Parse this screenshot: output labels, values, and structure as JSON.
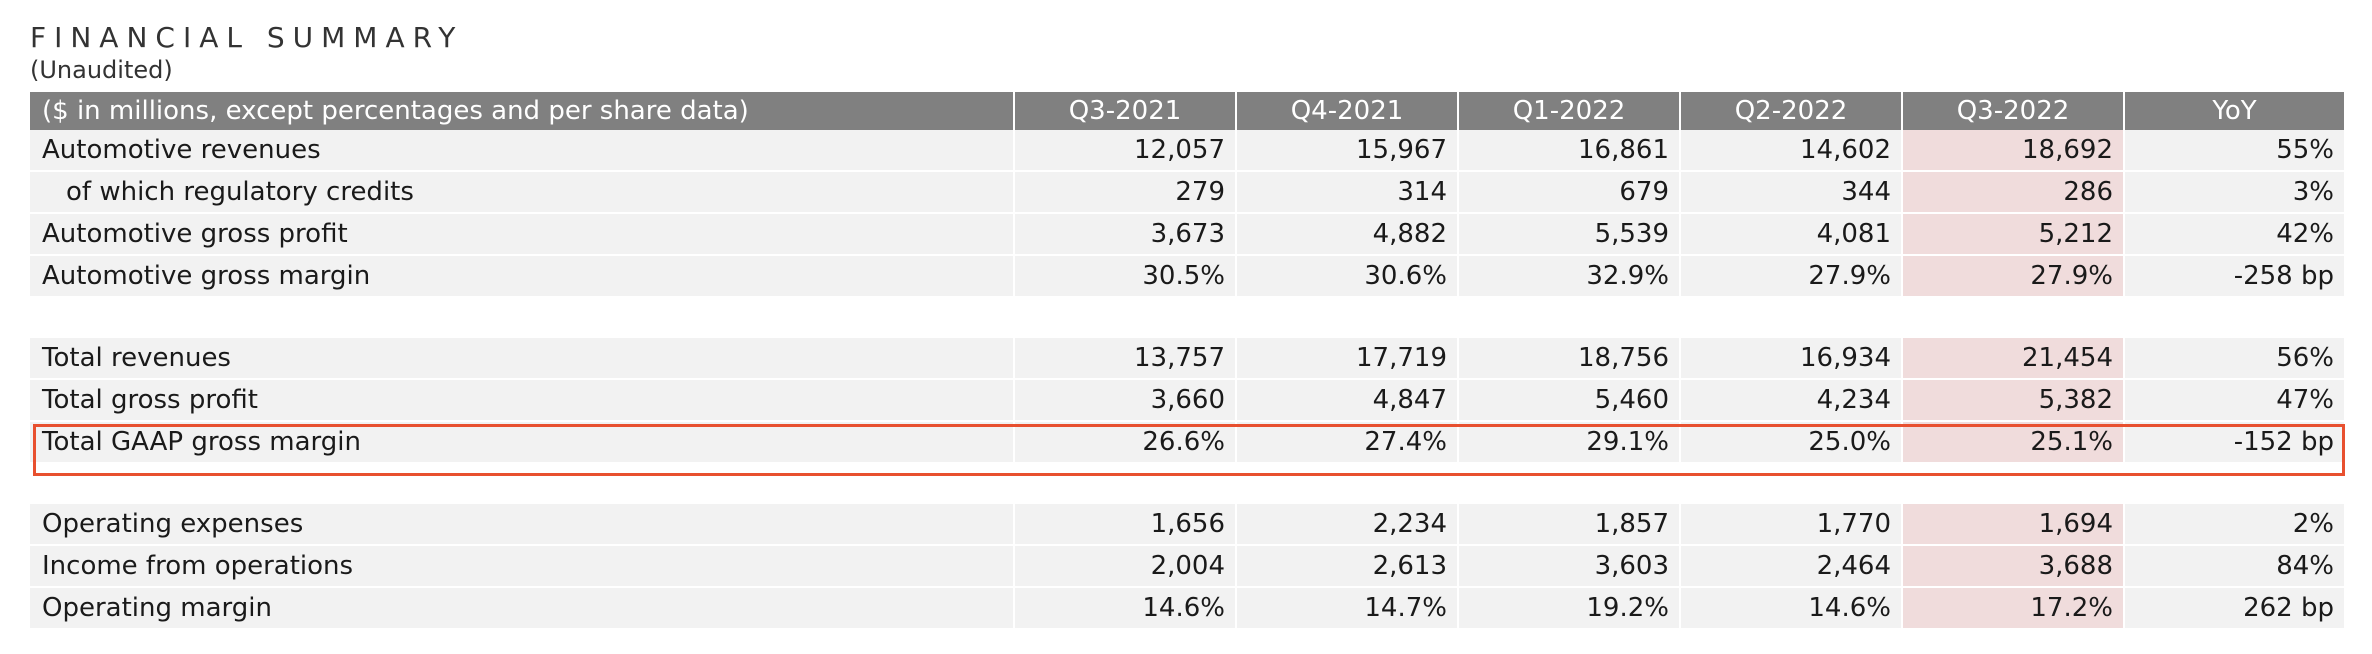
{
  "header": {
    "title": "FINANCIAL SUMMARY",
    "subtitle": "(Unaudited)"
  },
  "table": {
    "label_header": "($ in millions, except percentages and per share data)",
    "columns": [
      "Q3-2021",
      "Q4-2021",
      "Q1-2022",
      "Q2-2022",
      "Q3-2022",
      "YoY"
    ],
    "highlight_column": "Q3-2022",
    "groups": [
      {
        "rows": [
          {
            "label": "Automotive revenues",
            "values": [
              "12,057",
              "15,967",
              "16,861",
              "14,602",
              "18,692",
              "55%"
            ]
          },
          {
            "label": "of which regulatory credits",
            "values": [
              "279",
              "314",
              "679",
              "344",
              "286",
              "3%"
            ]
          },
          {
            "label": "Automotive gross profit",
            "values": [
              "3,673",
              "4,882",
              "5,539",
              "4,081",
              "5,212",
              "42%"
            ]
          },
          {
            "label": "Automotive gross margin",
            "values": [
              "30.5%",
              "30.6%",
              "32.9%",
              "27.9%",
              "27.9%",
              "-258 bp"
            ]
          }
        ]
      },
      {
        "rows": [
          {
            "label": "Total revenues",
            "values": [
              "13,757",
              "17,719",
              "18,756",
              "16,934",
              "21,454",
              "56%"
            ]
          },
          {
            "label": "Total gross profit",
            "values": [
              "3,660",
              "4,847",
              "5,460",
              "4,234",
              "5,382",
              "47%"
            ]
          },
          {
            "label": "Total GAAP gross margin",
            "values": [
              "26.6%",
              "27.4%",
              "29.1%",
              "25.0%",
              "25.1%",
              "-152 bp"
            ]
          }
        ]
      },
      {
        "rows": [
          {
            "label": "Operating expenses",
            "values": [
              "1,656",
              "2,234",
              "1,857",
              "1,770",
              "1,694",
              "2%"
            ]
          },
          {
            "label": "Income from operations",
            "values": [
              "2,004",
              "2,613",
              "3,603",
              "2,464",
              "3,688",
              "84%"
            ]
          },
          {
            "label": "Operating margin",
            "values": [
              "14.6%",
              "14.7%",
              "19.2%",
              "14.6%",
              "17.2%",
              "262 bp"
            ]
          }
        ]
      }
    ]
  },
  "colors": {
    "header_bg": "#808080",
    "row_bg": "#f2f2f2",
    "highlight_col_bg": "#f0dcdc",
    "highlight_box_border": "#e8502f"
  }
}
